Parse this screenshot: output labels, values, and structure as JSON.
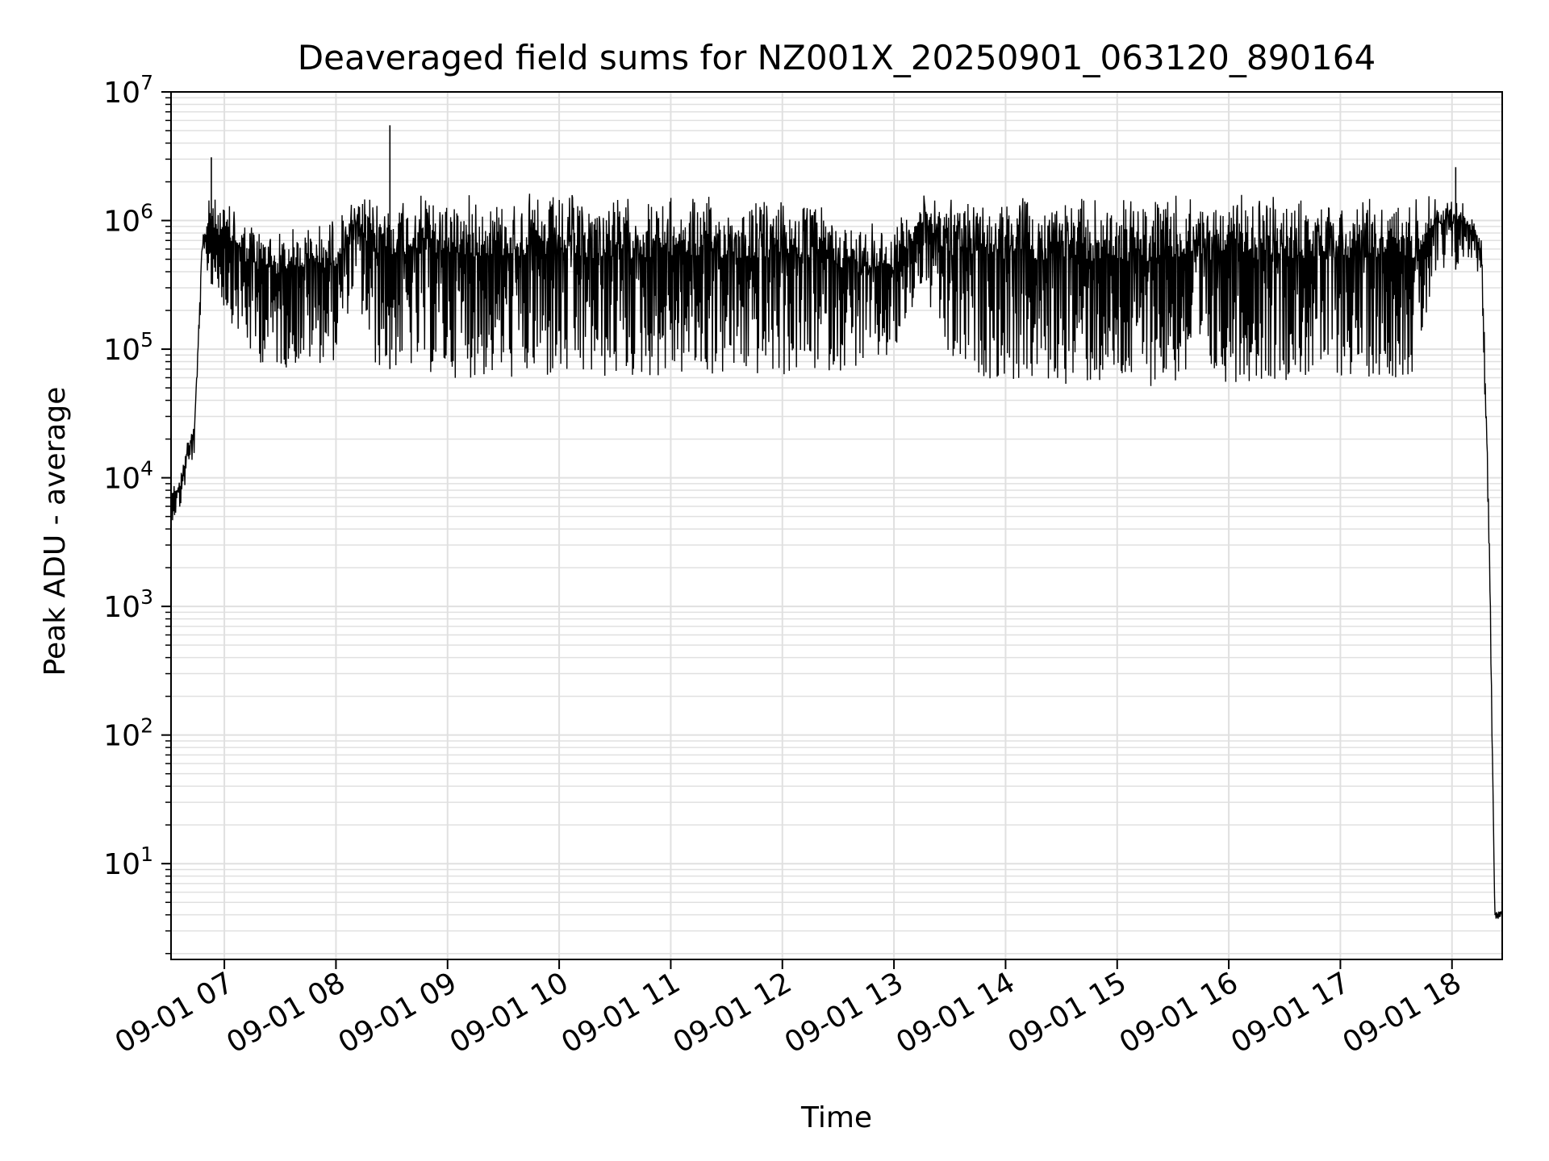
{
  "chart_data": {
    "type": "line",
    "title": "Deaveraged field sums for NZ001X_20250901_063120_890164",
    "xlabel": "Time",
    "ylabel": "Peak ADU - average",
    "yscale": "log",
    "ylim": [
      1.8,
      10000000
    ],
    "xlim": [
      "2025-09-01 06:31:20",
      "2025-09-01 18:27:00"
    ],
    "grid": true,
    "line_color": "#000000",
    "grid_color": "#e0e0e0",
    "x_tick_labels": [
      "09-01 07",
      "09-01 08",
      "09-01 09",
      "09-01 10",
      "09-01 11",
      "09-01 12",
      "09-01 13",
      "09-01 14",
      "09-01 15",
      "09-01 16",
      "09-01 17",
      "09-01 18"
    ],
    "y_ticks": [
      {
        "value": 10,
        "base": "10",
        "exp": "1"
      },
      {
        "value": 100,
        "base": "10",
        "exp": "2"
      },
      {
        "value": 1000,
        "base": "10",
        "exp": "3"
      },
      {
        "value": 10000,
        "base": "10",
        "exp": "4"
      },
      {
        "value": 100000,
        "base": "10",
        "exp": "5"
      },
      {
        "value": 1000000,
        "base": "10",
        "exp": "6"
      },
      {
        "value": 10000000,
        "base": "10",
        "exp": "7"
      }
    ],
    "series": [
      {
        "envelope": {
          "time": [
            "2025-09-01 06:31:20",
            "2025-09-01 06:36:00",
            "2025-09-01 06:40:00",
            "2025-09-01 06:44:00",
            "2025-09-01 06:48:00",
            "2025-09-01 06:52:00",
            "2025-09-01 06:56:00",
            "2025-09-01 07:05:00",
            "2025-09-01 07:15:00",
            "2025-09-01 07:30:00",
            "2025-09-01 07:45:00",
            "2025-09-01 08:00:00",
            "2025-09-01 08:10:00",
            "2025-09-01 08:20:00",
            "2025-09-01 08:35:00",
            "2025-09-01 09:00:00",
            "2025-09-01 10:00:00",
            "2025-09-01 11:00:00",
            "2025-09-01 12:00:00",
            "2025-09-01 12:20:00",
            "2025-09-01 12:40:00",
            "2025-09-01 13:00:00",
            "2025-09-01 13:15:00",
            "2025-09-01 13:30:00",
            "2025-09-01 14:00:00",
            "2025-09-01 15:00:00",
            "2025-09-01 16:00:00",
            "2025-09-01 17:00:00",
            "2025-09-01 17:40:00",
            "2025-09-01 17:50:00",
            "2025-09-01 18:05:00",
            "2025-09-01 18:12:00",
            "2025-09-01 18:16:00",
            "2025-09-01 18:20:00",
            "2025-09-01 18:23:00",
            "2025-09-01 18:27:00"
          ],
          "high": [
            9000,
            10000,
            20000,
            30000,
            700000,
            1600000,
            1500000,
            1300000,
            1000000,
            900000,
            1000000,
            1100000,
            1500000,
            1600000,
            1600000,
            1700000,
            1650000,
            1600000,
            1550000,
            1400000,
            1000000,
            1000000,
            1600000,
            1600000,
            1600000,
            1600000,
            1600000,
            1550000,
            1600000,
            1700000,
            1500000,
            1000000,
            800000,
            5000,
            4.3,
            4.3
          ],
          "low": [
            4500,
            5500,
            10000,
            15000,
            400000,
            350000,
            250000,
            150000,
            80000,
            70000,
            75000,
            80000,
            300000,
            70000,
            70000,
            60000,
            55000,
            60000,
            60000,
            65000,
            70000,
            80000,
            300000,
            70000,
            55000,
            50000,
            55000,
            60000,
            60000,
            300000,
            450000,
            500000,
            300000,
            2500,
            3.7,
            3.7
          ]
        },
        "spikes": [
          {
            "time": "2025-09-01 06:53:00",
            "value": 3100000
          },
          {
            "time": "2025-09-01 08:29:00",
            "value": 5500000
          },
          {
            "time": "2025-09-01 18:02:00",
            "value": 2600000
          }
        ]
      }
    ]
  }
}
